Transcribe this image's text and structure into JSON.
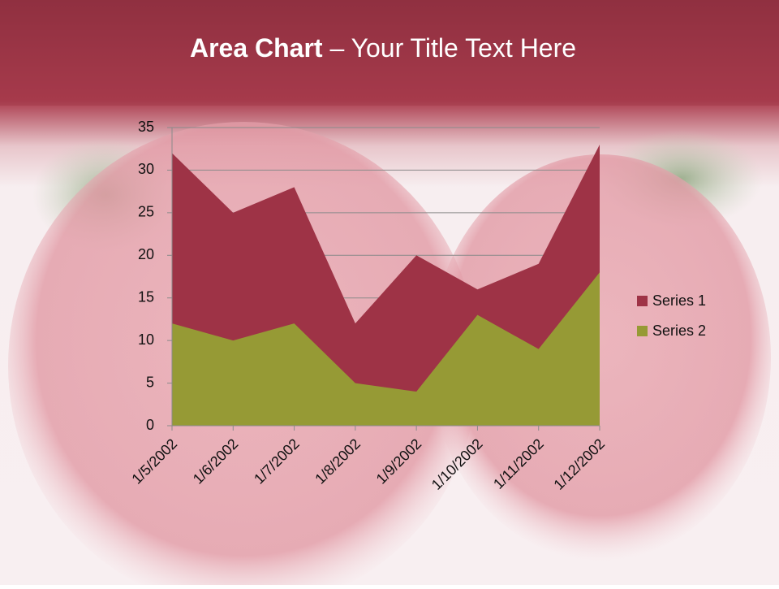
{
  "chart_data": {
    "type": "area",
    "title_bold": "Area Chart",
    "title_rest": "– Your Title Text Here",
    "categories": [
      "1/5/2002",
      "1/6/2002",
      "1/7/2002",
      "1/8/2002",
      "1/9/2002",
      "1/10/2002",
      "1/11/2002",
      "1/12/2002"
    ],
    "series": [
      {
        "name": "Series 1",
        "color": "#9e3346",
        "values": [
          32,
          25,
          28,
          12,
          20,
          16,
          19,
          33
        ]
      },
      {
        "name": "Series 2",
        "color": "#969a35",
        "values": [
          12,
          10,
          12,
          5,
          4,
          13,
          9,
          18
        ]
      }
    ],
    "ylim": [
      0,
      35
    ],
    "yticks": [
      0,
      5,
      10,
      15,
      20,
      25,
      30,
      35
    ],
    "grid": true,
    "legend": "right"
  }
}
